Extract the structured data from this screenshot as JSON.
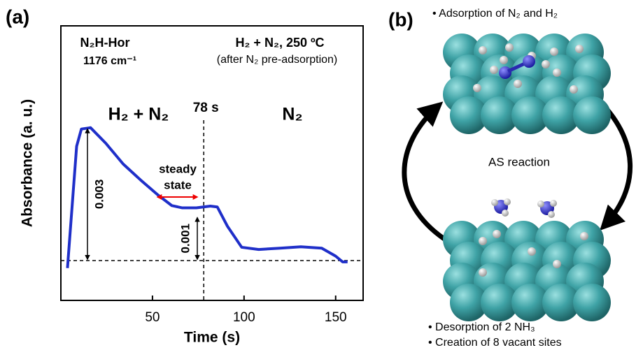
{
  "chart_data": {
    "type": "line",
    "panel_label": "(a)",
    "x_label": "Time (s)",
    "y_label": "Absorbance (a. u.)",
    "x": [
      3.6,
      8.6,
      11.2,
      16.2,
      24.5,
      34,
      43.5,
      53,
      60.6,
      66.3,
      74,
      81.6,
      85.4,
      91,
      98.7,
      108,
      119.6,
      131,
      142.4,
      150,
      153.8,
      156.5
    ],
    "values": [
      -0.00017,
      0.00258,
      0.00297,
      0.003,
      0.00265,
      0.00218,
      0.00182,
      0.00148,
      0.00124,
      0.00119,
      0.00119,
      0.00123,
      0.00121,
      0.00077,
      0.0003,
      0.00025,
      0.00028,
      0.00031,
      0.00028,
      0.0001,
      -3e-05,
      -3e-05
    ],
    "color": "#1f2fc9",
    "xlim": [
      0,
      165
    ],
    "xticks": [
      50,
      100,
      150
    ],
    "ylim": [
      -0.0009,
      0.0053
    ],
    "species": "N₂H-Hor",
    "wavenumber": "1176 cm⁻¹",
    "condition": "H₂ + N₂, 250 ºC",
    "condition_note": "(after N₂ pre-adsorption)",
    "phase_1": "H₂ + N₂",
    "phase_2": "N₂",
    "switch_time": 78,
    "switch_label": "78 s",
    "steady_label": [
      "steady",
      "state"
    ],
    "arrows": [
      0.003,
      0.001
    ]
  },
  "scheme": {
    "panel_label": "(b)",
    "top_caption": "• Adsorption of N₂ and H₂",
    "center_label": "AS reaction",
    "bottom_captions": [
      "• Desorption of 2 NH₃",
      "• Creation of  8 vacant sites"
    ]
  }
}
